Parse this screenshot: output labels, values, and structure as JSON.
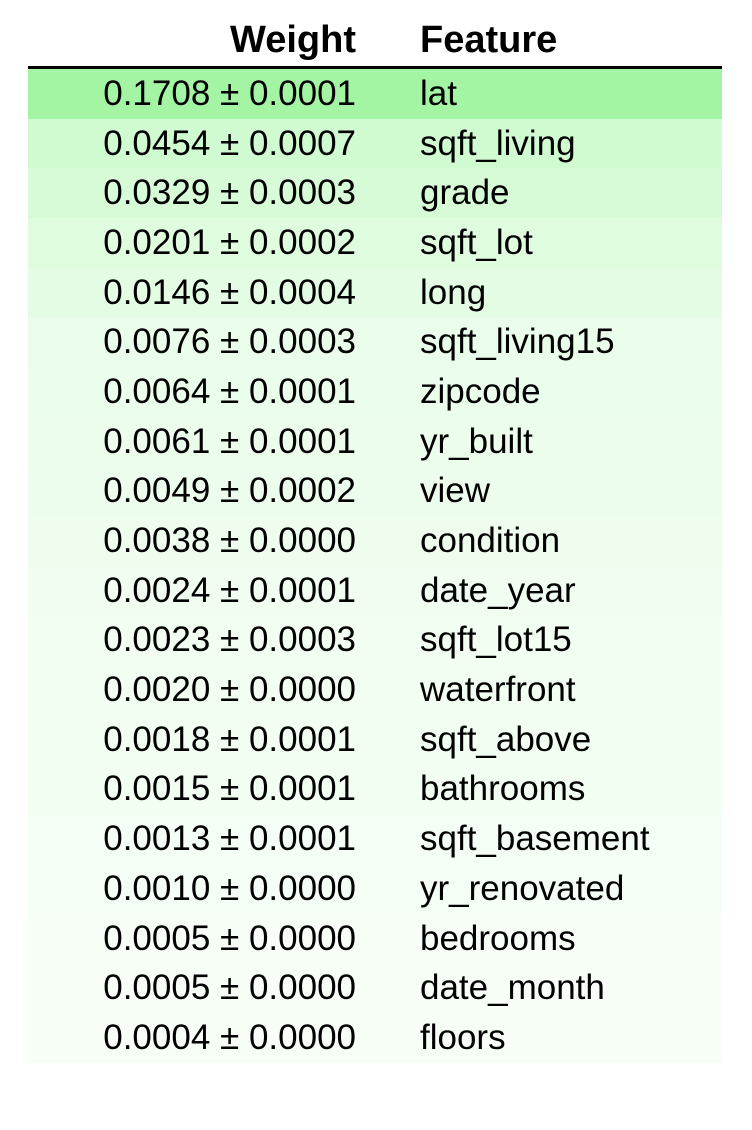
{
  "chart_data": {
    "type": "table",
    "columns": [
      "Weight",
      "Feature"
    ],
    "rows": [
      {
        "weight": 0.1708,
        "std": 0.0001,
        "weight_text": "0.1708 ± 0.0001",
        "feature": "lat"
      },
      {
        "weight": 0.0454,
        "std": 0.0007,
        "weight_text": "0.0454 ± 0.0007",
        "feature": "sqft_living"
      },
      {
        "weight": 0.0329,
        "std": 0.0003,
        "weight_text": "0.0329 ± 0.0003",
        "feature": "grade"
      },
      {
        "weight": 0.0201,
        "std": 0.0002,
        "weight_text": "0.0201 ± 0.0002",
        "feature": "sqft_lot"
      },
      {
        "weight": 0.0146,
        "std": 0.0004,
        "weight_text": "0.0146 ± 0.0004",
        "feature": "long"
      },
      {
        "weight": 0.0076,
        "std": 0.0003,
        "weight_text": "0.0076 ± 0.0003",
        "feature": "sqft_living15"
      },
      {
        "weight": 0.0064,
        "std": 0.0001,
        "weight_text": "0.0064 ± 0.0001",
        "feature": "zipcode"
      },
      {
        "weight": 0.0061,
        "std": 0.0001,
        "weight_text": "0.0061 ± 0.0001",
        "feature": "yr_built"
      },
      {
        "weight": 0.0049,
        "std": 0.0002,
        "weight_text": "0.0049 ± 0.0002",
        "feature": "view"
      },
      {
        "weight": 0.0038,
        "std": 0.0,
        "weight_text": "0.0038 ± 0.0000",
        "feature": "condition"
      },
      {
        "weight": 0.0024,
        "std": 0.0001,
        "weight_text": "0.0024 ± 0.0001",
        "feature": "date_year"
      },
      {
        "weight": 0.0023,
        "std": 0.0003,
        "weight_text": "0.0023 ± 0.0003",
        "feature": "sqft_lot15"
      },
      {
        "weight": 0.002,
        "std": 0.0,
        "weight_text": "0.0020 ± 0.0000",
        "feature": "waterfront"
      },
      {
        "weight": 0.0018,
        "std": 0.0001,
        "weight_text": "0.0018 ± 0.0001",
        "feature": "sqft_above"
      },
      {
        "weight": 0.0015,
        "std": 0.0001,
        "weight_text": "0.0015 ± 0.0001",
        "feature": "bathrooms"
      },
      {
        "weight": 0.0013,
        "std": 0.0001,
        "weight_text": "0.0013 ± 0.0001",
        "feature": "sqft_basement"
      },
      {
        "weight": 0.001,
        "std": 0.0,
        "weight_text": "0.0010 ± 0.0000",
        "feature": "yr_renovated"
      },
      {
        "weight": 0.0005,
        "std": 0.0,
        "weight_text": "0.0005 ± 0.0000",
        "feature": "bedrooms"
      },
      {
        "weight": 0.0005,
        "std": 0.0,
        "weight_text": "0.0005 ± 0.0000",
        "feature": "date_month"
      },
      {
        "weight": 0.0004,
        "std": 0.0,
        "weight_text": "0.0004 ± 0.0000",
        "feature": "floors"
      }
    ],
    "highlight_color": "#a3f5a3"
  }
}
